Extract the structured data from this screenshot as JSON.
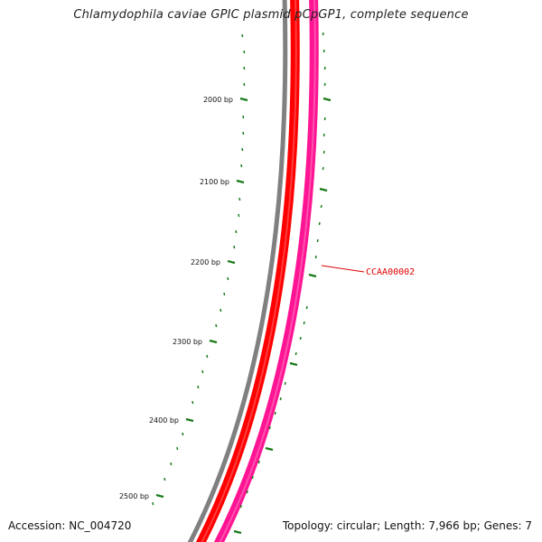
{
  "title": "Chlamydophila caviae GPIC plasmid pCpGP1, complete sequence",
  "footer": {
    "accession": "Accession: NC_004720",
    "summary": "Topology: circular; Length: 7,966 bp; Genes: 7"
  },
  "ruler": {
    "labels": [
      "2000 bp",
      "2100 bp",
      "2200 bp",
      "2300 bp",
      "2400 bp",
      "2500 bp"
    ],
    "color": "#1a7a1a"
  },
  "genes": [
    {
      "label": "CCAA00002",
      "color": "#dd0000"
    }
  ],
  "colors": {
    "backbone": "#808080",
    "forward_track": "#ff0000",
    "reverse_track": "#ff1493",
    "gene_label": "#dd0000",
    "tick": "#1a7a1a"
  }
}
